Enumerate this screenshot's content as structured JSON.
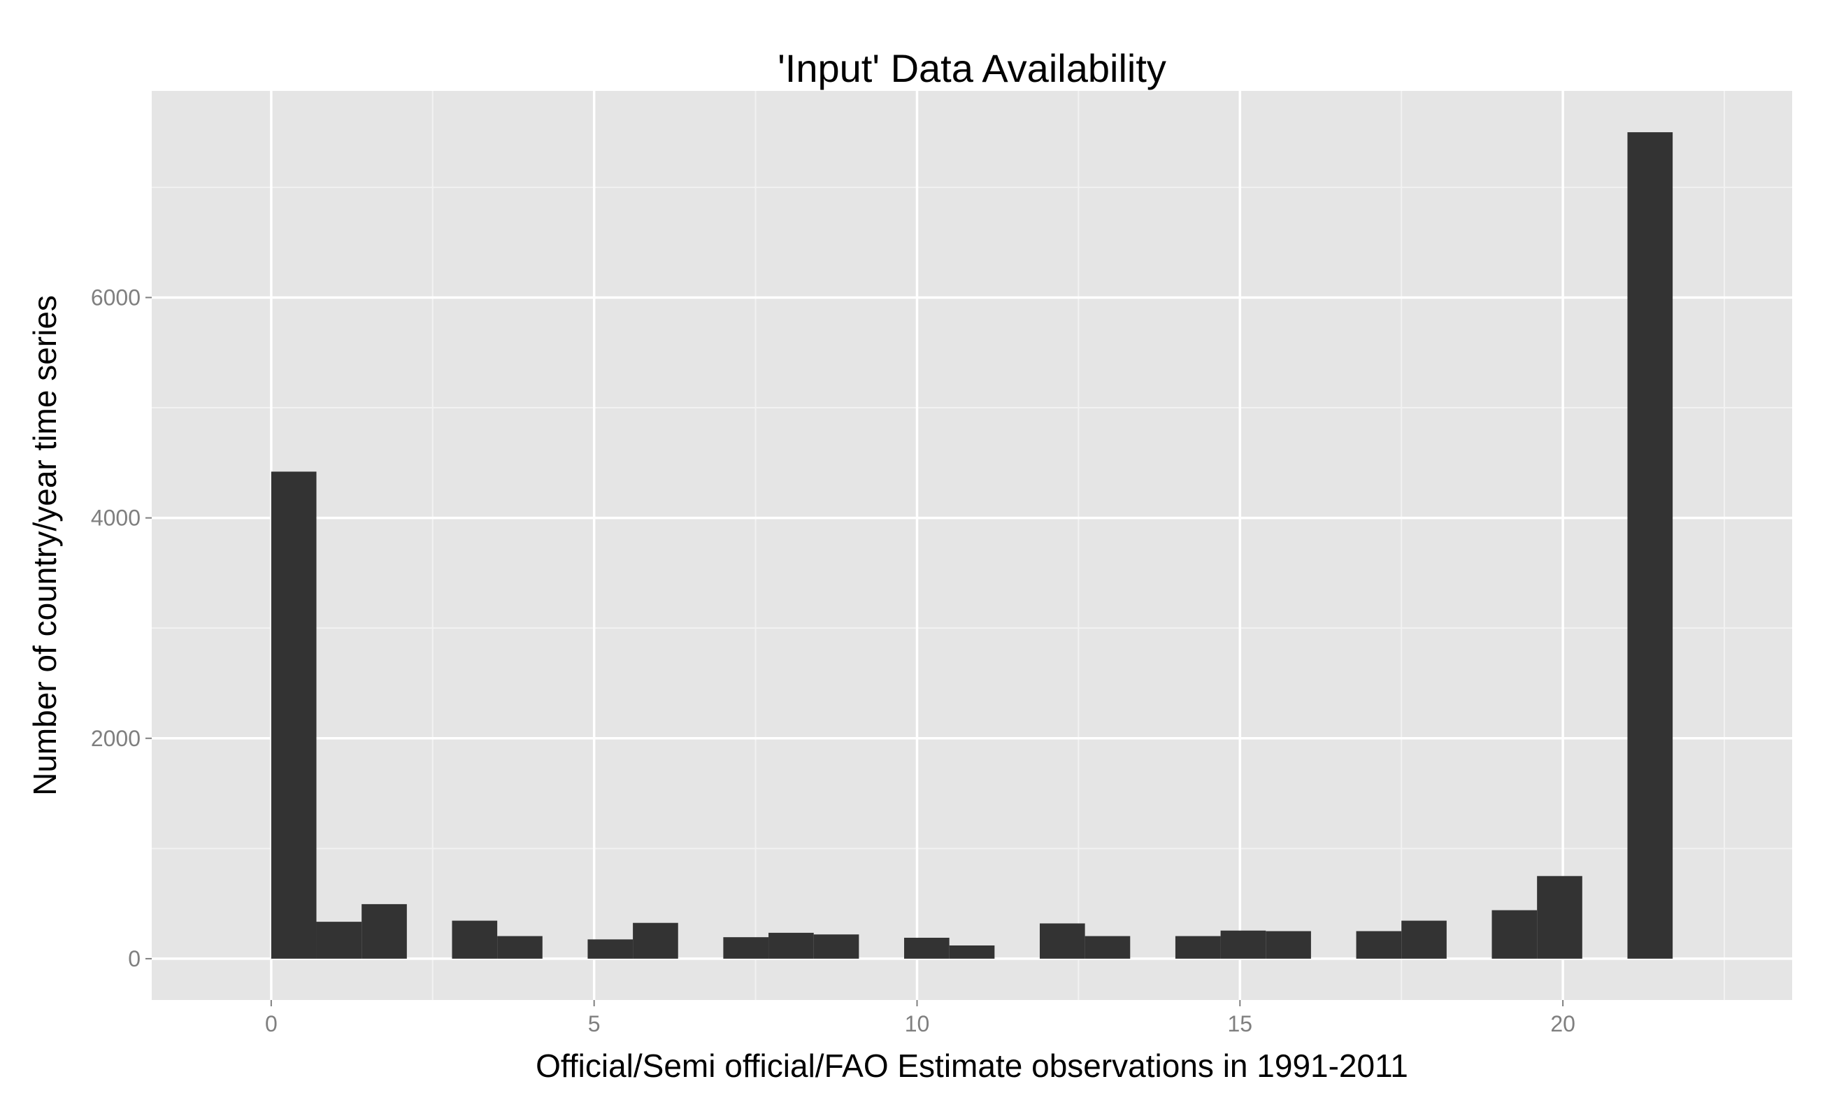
{
  "chart_data": {
    "type": "bar",
    "title": "'Input' Data Availability",
    "xlabel": "Official/Semi official/FAO Estimate observations in 1991-2011",
    "ylabel": "Number of country/year time series",
    "xlim": [
      -1.85,
      23.55
    ],
    "ylim": [
      -375,
      7875
    ],
    "xticks": [
      0,
      5,
      10,
      15,
      20
    ],
    "yticks": [
      0,
      2000,
      4000,
      6000
    ],
    "grid": true,
    "legend": "none",
    "bin_width": 0.7,
    "bins": [
      {
        "x0": 0.0,
        "count": 4420
      },
      {
        "x0": 0.7,
        "count": 335
      },
      {
        "x0": 1.4,
        "count": 495
      },
      {
        "x0": 2.1,
        "count": 0
      },
      {
        "x0": 2.8,
        "count": 345
      },
      {
        "x0": 3.5,
        "count": 205
      },
      {
        "x0": 4.2,
        "count": 0
      },
      {
        "x0": 4.9,
        "count": 175
      },
      {
        "x0": 5.6,
        "count": 325
      },
      {
        "x0": 6.3,
        "count": 0
      },
      {
        "x0": 7.0,
        "count": 195
      },
      {
        "x0": 7.7,
        "count": 235
      },
      {
        "x0": 8.4,
        "count": 220
      },
      {
        "x0": 9.1,
        "count": 0
      },
      {
        "x0": 9.8,
        "count": 190
      },
      {
        "x0": 10.5,
        "count": 120
      },
      {
        "x0": 11.2,
        "count": 0
      },
      {
        "x0": 11.9,
        "count": 320
      },
      {
        "x0": 12.6,
        "count": 205
      },
      {
        "x0": 13.3,
        "count": 0
      },
      {
        "x0": 14.0,
        "count": 205
      },
      {
        "x0": 14.7,
        "count": 255
      },
      {
        "x0": 15.4,
        "count": 250
      },
      {
        "x0": 16.1,
        "count": 0
      },
      {
        "x0": 16.8,
        "count": 250
      },
      {
        "x0": 17.5,
        "count": 345
      },
      {
        "x0": 18.2,
        "count": 0
      },
      {
        "x0": 18.9,
        "count": 440
      },
      {
        "x0": 19.6,
        "count": 750
      },
      {
        "x0": 20.3,
        "count": 0
      },
      {
        "x0": 21.0,
        "count": 7500
      }
    ],
    "colors": {
      "panel": "#e5e5e5",
      "grid_major": "#ffffff",
      "grid_minor": "#f2f2f2",
      "bar": "#333333",
      "tick_label": "#7f7f7f",
      "tick_mark": "#7f7f7f"
    }
  }
}
